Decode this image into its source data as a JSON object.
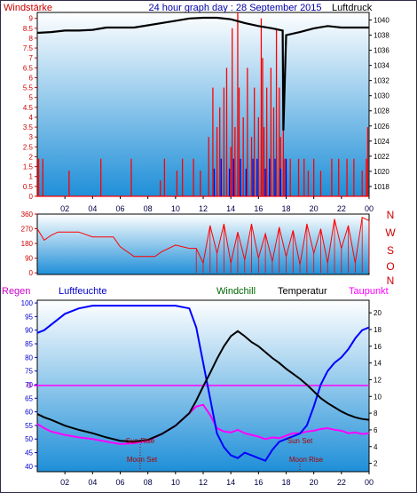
{
  "header": {
    "left": "Windstärke",
    "center": "24 hour graph day : 28 September 2015",
    "right": "Luftdruck"
  },
  "bottom_legend": {
    "regen": "Regen",
    "luftfeuchte": "Luftfeuchte",
    "windchill": "Windchill",
    "temperatur": "Temperatur",
    "taupunkt": "Taupunkt"
  },
  "annotations": {
    "sun_rise": "Sun Rise",
    "sun_set": "Sun Set",
    "moon_set": "Moon Set",
    "moon_rise": "Moon Rise",
    "rain_zero": "0"
  },
  "colors": {
    "wind": "#ff0000",
    "gust": "#0000dd",
    "pressure": "#000000",
    "humidity": "#0000ff",
    "temperature": "#000000",
    "dewpoint": "#ff00ff",
    "axis_left": "#cc0000",
    "axis_right": "#000000",
    "axis_humidity": "#0000cc",
    "bg_top": "#ffffff",
    "bg_bottom": "#1f8fd8"
  },
  "chart_data": [
    {
      "type": "line",
      "title": "24 hour graph day : 28 September 2015",
      "ylabel": "Windstärke",
      "y2label": "Luftdruck",
      "xlim": [
        0,
        24
      ],
      "ylim": [
        0,
        9.3
      ],
      "y2lim": [
        1016.7,
        1041.0
      ],
      "x_ticks": [
        "02",
        "04",
        "06",
        "08",
        "10",
        "12",
        "14",
        "16",
        "18",
        "20",
        "22",
        "00"
      ],
      "y_ticks": [
        "0",
        "0.5",
        "1",
        "1.5",
        "2",
        "2.5",
        "3",
        "3.5",
        "4",
        "4.5",
        "5",
        "5.5",
        "6",
        "6.5",
        "7",
        "7.5",
        "8",
        "8.5",
        "9"
      ],
      "y2_ticks": [
        "1018",
        "1020",
        "1022",
        "1024",
        "1026",
        "1028",
        "1030",
        "1032",
        "1034",
        "1036",
        "1038",
        "1040"
      ],
      "series": [
        {
          "name": "Luftdruck",
          "axis": "right",
          "x": [
            0,
            1,
            2,
            3,
            4,
            5,
            6,
            7,
            8,
            9,
            10,
            11,
            12,
            13,
            14,
            15,
            16,
            17,
            17.75,
            17.8,
            18,
            19,
            20,
            21,
            22,
            23,
            24
          ],
          "y": [
            1038.3,
            1038.4,
            1038.6,
            1038.6,
            1038.7,
            1039.0,
            1039.0,
            1039.0,
            1039.3,
            1039.6,
            1039.9,
            1040.2,
            1040.3,
            1040.3,
            1040.1,
            1039.6,
            1039.2,
            1038.9,
            1038.6,
            1025.4,
            1038.0,
            1038.4,
            1038.9,
            1039.2,
            1039.0,
            1039.0,
            1039.0
          ]
        },
        {
          "name": "wind-peaks",
          "axis": "left",
          "x": [
            0.05,
            0.1,
            0.4,
            2.3,
            4.6,
            6.8,
            8.9,
            9.2,
            10.1,
            10.5,
            11.3,
            11.8,
            12.4,
            12.7,
            13.0,
            13.2,
            13.5,
            13.7,
            14.0,
            14.1,
            14.3,
            14.5,
            14.6,
            14.9,
            15.2,
            15.5,
            15.7,
            16.0,
            16.2,
            16.3,
            16.4,
            16.6,
            16.9,
            17.1,
            17.3,
            17.5,
            17.6,
            17.8,
            17.9,
            18.3,
            18.9,
            19.3,
            19.6,
            20.0,
            20.5,
            21.3,
            21.8,
            22.4,
            22.9,
            23.5,
            23.8,
            23.9
          ],
          "y": [
            1.9,
            1.9,
            1.9,
            1.3,
            1.9,
            1.9,
            0.8,
            1.9,
            1.3,
            1.9,
            1.9,
            1.3,
            3.0,
            5.5,
            3.5,
            4.5,
            5.5,
            6.5,
            2.5,
            8.5,
            3.5,
            9.3,
            5.5,
            4.0,
            6.5,
            3.0,
            5.5,
            4.0,
            9.0,
            7.0,
            3.5,
            5.5,
            6.5,
            4.5,
            8.5,
            5.5,
            3.0,
            4.5,
            1.9,
            1.9,
            1.9,
            1.9,
            1.3,
            1.9,
            1.3,
            1.9,
            1.9,
            1.9,
            1.9,
            1.3,
            1.9,
            3.5
          ]
        },
        {
          "name": "gust-peaks",
          "axis": "left",
          "x": [
            12.8,
            13.3,
            13.9,
            14.2,
            14.7,
            15.1,
            15.6,
            15.9,
            16.5,
            16.8,
            17.2,
            17.6,
            18.0
          ],
          "y": [
            1.4,
            1.9,
            1.4,
            1.9,
            1.9,
            1.4,
            1.9,
            1.9,
            1.4,
            1.9,
            1.9,
            1.4,
            1.9
          ]
        }
      ]
    },
    {
      "type": "line",
      "ylabel": "Windrichtung",
      "xlim": [
        0,
        24
      ],
      "ylim": [
        -10,
        360
      ],
      "y_ticks": [
        "0",
        "90",
        "180",
        "270",
        "360"
      ],
      "y2_ticks": [
        "N",
        "W",
        "S",
        "O",
        "N"
      ],
      "series": [
        {
          "name": "Windrichtung",
          "x": [
            0,
            0.5,
            1,
            1.5,
            2,
            2.5,
            3,
            4,
            5,
            5.5,
            6,
            7,
            8,
            8.5,
            9,
            10,
            11,
            11.5,
            12,
            12.5,
            13,
            13.5,
            14,
            14.5,
            15,
            15.5,
            16,
            16.5,
            17,
            17.5,
            18,
            18.5,
            19,
            19.5,
            20,
            20.5,
            21,
            21.5,
            22,
            22.5,
            23,
            23.5,
            24
          ],
          "y": [
            270,
            200,
            230,
            250,
            250,
            250,
            250,
            220,
            220,
            220,
            160,
            100,
            100,
            100,
            130,
            170,
            150,
            150,
            60,
            290,
            120,
            300,
            60,
            250,
            80,
            300,
            90,
            240,
            70,
            280,
            100,
            260,
            50,
            300,
            120,
            270,
            60,
            330,
            150,
            290,
            60,
            340,
            320
          ]
        }
      ]
    },
    {
      "type": "line",
      "xlim": [
        0,
        24
      ],
      "ylim": [
        38,
        101
      ],
      "y2lim": [
        1,
        21.5
      ],
      "y_ticks": [
        "40",
        "45",
        "50",
        "55",
        "60",
        "65",
        "70",
        "75",
        "80",
        "85",
        "90",
        "95",
        "100"
      ],
      "y2_ticks": [
        "2",
        "4",
        "6",
        "8",
        "10",
        "12",
        "14",
        "16",
        "18",
        "20"
      ],
      "x_ticks": [
        "02",
        "04",
        "06",
        "08",
        "10",
        "12",
        "14",
        "16",
        "18",
        "20",
        "22",
        "00"
      ],
      "series": [
        {
          "name": "Luftfeuchte",
          "axis": "left",
          "x": [
            0,
            0.5,
            1,
            2,
            3,
            4,
            5,
            6,
            7,
            8,
            9,
            10,
            11,
            11.5,
            12,
            12.5,
            13,
            13.5,
            14,
            14.5,
            15,
            15.5,
            16,
            16.5,
            17,
            17.5,
            18,
            18.5,
            19,
            19.5,
            20,
            20.5,
            21,
            21.5,
            22,
            22.5,
            23,
            23.5,
            24
          ],
          "y": [
            89,
            90,
            92,
            96,
            98,
            99,
            99,
            99,
            99,
            99,
            99,
            99,
            98,
            91,
            78,
            65,
            52,
            47,
            44,
            43,
            45,
            44,
            43,
            42,
            46,
            49,
            50,
            51,
            52,
            55,
            62,
            70,
            75,
            78,
            80,
            83,
            87,
            90,
            91
          ]
        },
        {
          "name": "Temperatur",
          "axis": "right",
          "x": [
            0,
            0.5,
            1,
            2,
            3,
            4,
            5,
            6,
            7,
            8,
            9,
            10,
            11,
            11.5,
            12,
            12.5,
            13,
            13.5,
            14,
            14.5,
            15,
            15.5,
            16,
            16.5,
            17,
            17.5,
            18,
            18.5,
            19,
            19.5,
            20,
            20.5,
            21,
            21.5,
            22,
            22.5,
            23,
            23.5,
            24
          ],
          "y": [
            7.9,
            7.5,
            7.2,
            6.5,
            6.0,
            5.6,
            5.1,
            4.7,
            4.6,
            4.8,
            5.5,
            6.5,
            8.0,
            9.5,
            11.2,
            12.8,
            14.5,
            16.0,
            17.2,
            17.8,
            17.2,
            16.5,
            16.0,
            15.3,
            14.6,
            14.0,
            13.3,
            12.7,
            12.1,
            11.4,
            10.6,
            9.8,
            9.2,
            8.7,
            8.2,
            7.8,
            7.5,
            7.3,
            7.2
          ]
        },
        {
          "name": "Taupunkt",
          "axis": "right",
          "x": [
            0,
            0.5,
            1,
            2,
            3,
            4,
            5,
            6,
            7,
            8,
            9,
            10,
            11,
            11.5,
            12,
            12.5,
            13,
            13.5,
            14,
            14.5,
            15,
            15.5,
            16,
            16.5,
            17,
            17.5,
            18,
            18.5,
            19,
            19.5,
            20,
            20.5,
            21,
            21.5,
            22,
            22.5,
            23,
            23.5,
            24
          ],
          "y": [
            6.7,
            6.2,
            5.8,
            5.4,
            5.1,
            4.9,
            4.6,
            4.3,
            4.4,
            4.7,
            5.5,
            6.5,
            8.0,
            8.8,
            9.0,
            7.8,
            6.2,
            5.8,
            5.7,
            6.0,
            5.6,
            5.4,
            5.2,
            4.9,
            5.1,
            5.0,
            5.3,
            5.6,
            5.6,
            5.8,
            5.9,
            6.1,
            6.2,
            6.0,
            5.9,
            5.6,
            5.7,
            5.5,
            5.6
          ]
        }
      ]
    }
  ]
}
